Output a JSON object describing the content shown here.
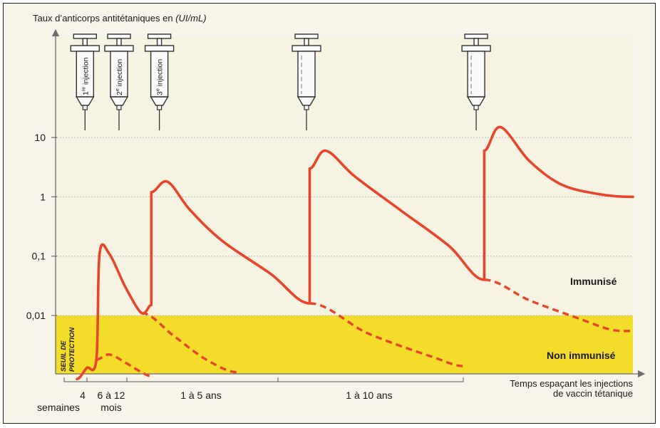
{
  "chart_data": {
    "type": "line",
    "ylabel_prefix": "Taux d’anticorps antitétaniques en ",
    "ylabel_unit": "(UI/mL)",
    "y_scale": "log",
    "y_ticks": [
      {
        "value": 10,
        "label": "10"
      },
      {
        "value": 1,
        "label": "1"
      },
      {
        "value": 0.1,
        "label": "0,1"
      },
      {
        "value": 0.01,
        "label": "0,01"
      }
    ],
    "y_range": [
      0.0008,
      100
    ],
    "grid": true,
    "xlabel": [
      "Temps espaçant les injections",
      "de vaccin tétanique"
    ],
    "x_segments": [
      {
        "label": "4",
        "sublabel": "semaines"
      },
      {
        "label": "6 à 12",
        "sublabel": "mois"
      },
      {
        "label": "1 à 5 ans",
        "sublabel": ""
      },
      {
        "label": "1 à 10 ans",
        "sublabel": ""
      }
    ],
    "injections": [
      {
        "label": "1",
        "sup": "re",
        "suffix": " injection"
      },
      {
        "label": "2",
        "sup": "e",
        "suffix": " injection"
      },
      {
        "label": "3",
        "sup": "e",
        "suffix": " injection"
      },
      {
        "label": "",
        "sup": "",
        "suffix": ""
      },
      {
        "label": "",
        "sup": "",
        "suffix": ""
      }
    ],
    "threshold": {
      "value": 0.01,
      "label": "SEUIL DE PROTECTION"
    },
    "zones": {
      "above": "Immunisé",
      "below": "Non immunisé"
    },
    "series_solid": [
      [
        0,
        0.00085
      ],
      [
        0.3,
        0.0013
      ],
      [
        0.6,
        0.0018
      ],
      [
        0.7,
        0.11
      ],
      [
        1.0,
        0.11
      ],
      [
        1.5,
        0.03
      ],
      [
        2.0,
        0.011
      ],
      [
        2.3,
        0.015
      ],
      [
        2.3,
        1.2
      ],
      [
        2.8,
        1.8
      ],
      [
        3.5,
        0.6
      ],
      [
        4.5,
        0.18
      ],
      [
        6.0,
        0.05
      ],
      [
        7.2,
        0.016
      ],
      [
        7.2,
        3.0
      ],
      [
        7.7,
        6.0
      ],
      [
        8.6,
        2.2
      ],
      [
        10.0,
        0.6
      ],
      [
        11.5,
        0.15
      ],
      [
        12.6,
        0.04
      ],
      [
        12.6,
        6.0
      ],
      [
        13.1,
        15.0
      ],
      [
        14.0,
        4.0
      ],
      [
        15.0,
        1.6
      ],
      [
        16.2,
        1.1
      ],
      [
        17.2,
        1.0
      ]
    ],
    "series_dashed": [
      [
        [
          0.6,
          0.0018
        ],
        [
          1.0,
          0.0022
        ],
        [
          1.5,
          0.0016
        ],
        [
          2.0,
          0.0011
        ],
        [
          2.3,
          0.00095
        ]
      ],
      [
        [
          2.0,
          0.011
        ],
        [
          3.0,
          0.0045
        ],
        [
          4.0,
          0.0018
        ],
        [
          5.0,
          0.0011
        ]
      ],
      [
        [
          7.2,
          0.016
        ],
        [
          9.0,
          0.005
        ],
        [
          11.0,
          0.002
        ],
        [
          12.0,
          0.0014
        ]
      ],
      [
        [
          12.6,
          0.04
        ],
        [
          14.0,
          0.018
        ],
        [
          15.5,
          0.009
        ],
        [
          16.5,
          0.0058
        ],
        [
          17.2,
          0.0055
        ]
      ]
    ],
    "x_range": [
      0,
      17.2
    ],
    "colors": {
      "curve": "#e8452a",
      "zone_low": "#f3dc2a",
      "zone_high": "#f6f3e3",
      "grid": "#b9b9b9",
      "axis": "#6d6d6d"
    }
  }
}
